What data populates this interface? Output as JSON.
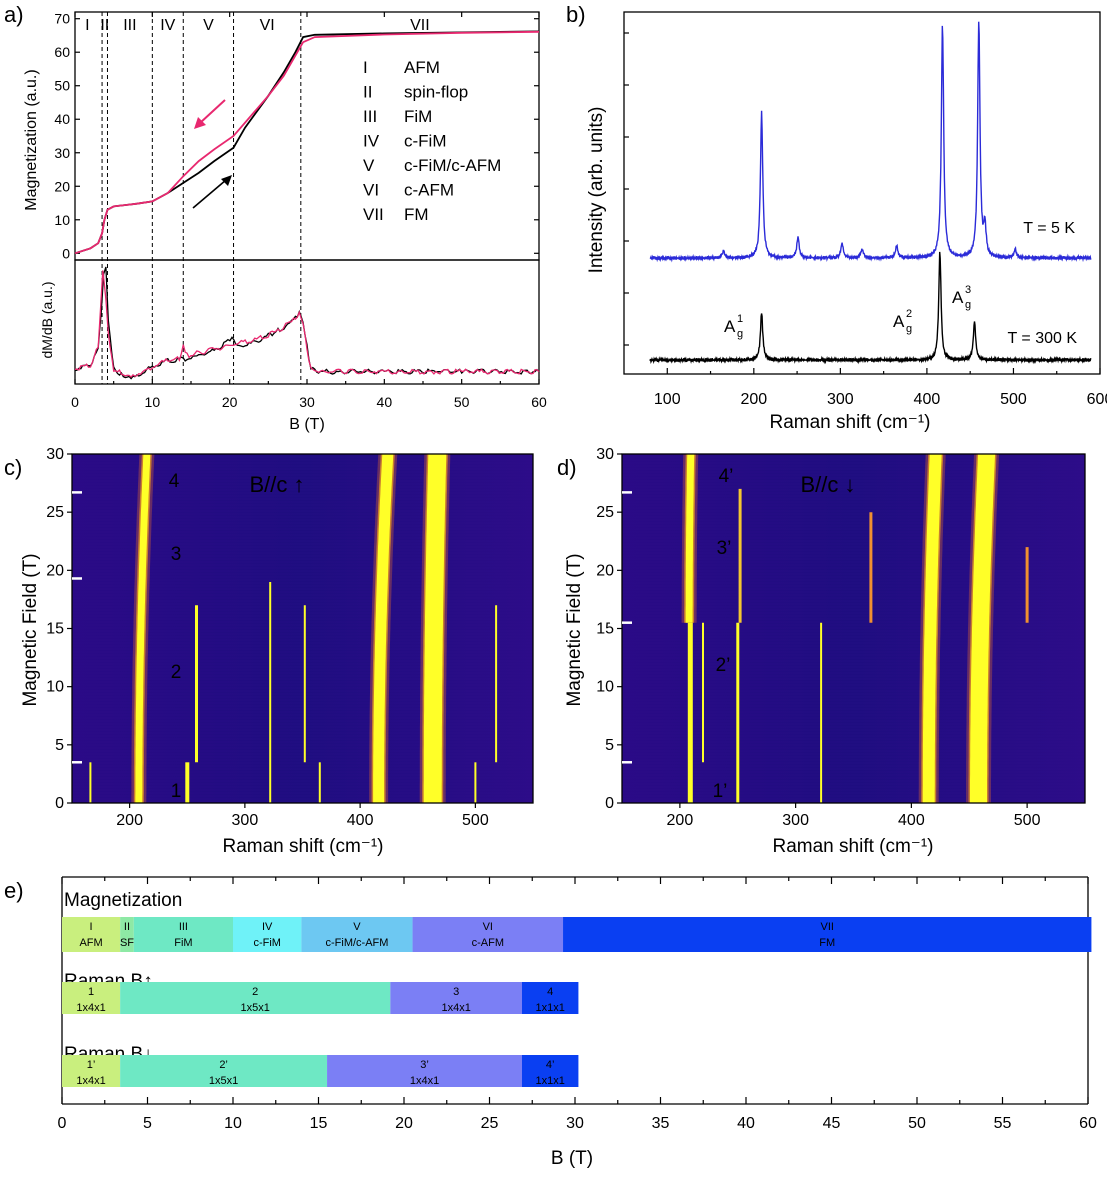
{
  "panel_labels": {
    "a": "a)",
    "b": "b)",
    "c": "c)",
    "d": "d)",
    "e": "e)"
  },
  "colors": {
    "black": "#000000",
    "pink": "#e8286f",
    "blue": "#2b2bd8",
    "heat_low": "#12066b",
    "heat_high": "#ffff00"
  },
  "chart_data": [
    {
      "id": "a_magnetization",
      "type": "line",
      "ylabel": "Magnetization (a.u.)",
      "xlim": [
        0,
        60
      ],
      "ylim": [
        -2,
        72
      ],
      "yticks": [
        "0",
        "10",
        "20",
        "30",
        "40",
        "50",
        "60",
        "70"
      ],
      "phase_labels": [
        "I",
        "II",
        "III",
        "IV",
        "V",
        "VI",
        "VII"
      ],
      "phase_boundaries": [
        3.5,
        4.2,
        10,
        14,
        20.5,
        29.2
      ],
      "legend": [
        {
          "num": "I",
          "name": "AFM"
        },
        {
          "num": "II",
          "name": "spin-flop"
        },
        {
          "num": "III",
          "name": "FiM"
        },
        {
          "num": "IV",
          "name": "c-FiM"
        },
        {
          "num": "V",
          "name": "c-FiM/c-AFM"
        },
        {
          "num": "VI",
          "name": "c-AFM"
        },
        {
          "num": "VII",
          "name": "FM"
        }
      ],
      "series": [
        {
          "color": "#000000",
          "x": [
            0,
            2,
            3,
            3.5,
            3.8,
            4.2,
            5,
            8,
            10,
            12,
            14,
            16,
            18,
            20.5,
            22,
            25,
            27,
            28.5,
            29.5,
            31,
            40,
            50,
            60
          ],
          "y": [
            0,
            1.5,
            3,
            6,
            10,
            13,
            14,
            14.8,
            15.5,
            18,
            21,
            24,
            27.5,
            31.5,
            37.5,
            47,
            54,
            60,
            64.5,
            65.2,
            65.6,
            65.9,
            66.2
          ]
        },
        {
          "color": "#e8286f",
          "x": [
            0,
            2,
            3,
            3.5,
            3.8,
            4.2,
            5,
            8,
            10,
            12,
            14,
            16,
            18,
            20.5,
            22,
            25,
            27,
            28.5,
            29.5,
            31,
            40,
            50,
            60
          ],
          "y": [
            0,
            1.5,
            3,
            6,
            10,
            13,
            14,
            14.8,
            15.5,
            18,
            23,
            27.5,
            31,
            35,
            39,
            47,
            53,
            59,
            63,
            64.5,
            65.3,
            65.8,
            66.1
          ]
        }
      ]
    },
    {
      "id": "a_derivative",
      "type": "line",
      "xlabel": "B (T)",
      "ylabel": "dM/dB (a.u.)",
      "xlim": [
        0,
        60
      ],
      "ylim": [
        0,
        10
      ],
      "xticks": [
        "0",
        "10",
        "20",
        "30",
        "40",
        "50",
        "60"
      ],
      "series": [
        {
          "color": "#000000",
          "x": [
            0,
            2,
            3,
            3.4,
            3.7,
            4,
            4.3,
            5,
            6,
            7,
            8,
            10,
            12,
            14,
            16,
            18,
            19.5,
            20.3,
            21,
            23,
            26,
            28,
            29,
            29.5,
            30.5,
            32,
            40,
            50,
            60
          ],
          "y": [
            1.2,
            1.5,
            3,
            6,
            9,
            9.5,
            5,
            1.2,
            0.8,
            0.6,
            0.7,
            1.4,
            1.9,
            2,
            2.3,
            2.7,
            3.3,
            3.6,
            3,
            3.3,
            4.2,
            5,
            5.7,
            4.8,
            1.2,
            1,
            1,
            1,
            1
          ]
        },
        {
          "color": "#e8286f",
          "x": [
            0,
            2,
            3,
            3.3,
            3.6,
            4,
            4.3,
            5,
            6,
            7,
            8,
            10,
            12,
            13.5,
            14,
            14.5,
            16,
            18,
            20,
            22,
            24,
            26,
            28,
            29,
            29.5,
            30.5,
            32,
            40,
            50,
            60
          ],
          "y": [
            1.2,
            1.5,
            3,
            6,
            9,
            7,
            4,
            1.2,
            0.9,
            0.7,
            0.8,
            1.4,
            1.9,
            2.1,
            3,
            2.3,
            2.5,
            2.8,
            3.1,
            3.4,
            3.7,
            4.2,
            5,
            5.6,
            4.7,
            1.2,
            1,
            1,
            1,
            1
          ]
        }
      ]
    },
    {
      "id": "b_raman",
      "type": "line",
      "xlabel": "Raman shift (cm⁻¹)",
      "ylabel": "Intensity (arb. units)",
      "xlim": [
        50,
        600
      ],
      "ylim": [
        0,
        10
      ],
      "xticks": [
        "100",
        "200",
        "300",
        "400",
        "500",
        "600"
      ],
      "series": [
        {
          "name": "T = 5 K",
          "color": "#2b2bd8",
          "peaks": [
            {
              "x": 165,
              "h": 0.25
            },
            {
              "x": 209,
              "h": 4.9
            },
            {
              "x": 251,
              "h": 0.7
            },
            {
              "x": 302,
              "h": 0.5
            },
            {
              "x": 325,
              "h": 0.3
            },
            {
              "x": 365,
              "h": 0.4
            },
            {
              "x": 418,
              "h": 7.8
            },
            {
              "x": 460,
              "h": 7.9
            },
            {
              "x": 467,
              "h": 1.0
            },
            {
              "x": 502,
              "h": 0.3
            }
          ]
        },
        {
          "name": "T = 300 K",
          "color": "#000000",
          "peaks": [
            {
              "x": 209,
              "h": 1.6
            },
            {
              "x": 415,
              "h": 3.6
            },
            {
              "x": 455,
              "h": 1.3
            }
          ]
        }
      ],
      "annotations": [
        {
          "base": "A",
          "sub": "g",
          "sup": "1"
        },
        {
          "base": "A",
          "sub": "g",
          "sup": "2"
        },
        {
          "base": "A",
          "sub": "g",
          "sup": "3"
        }
      ]
    },
    {
      "id": "c_heatmap_up",
      "type": "heatmap",
      "title": "B//c ↑",
      "xlabel": "Raman shift (cm⁻¹)",
      "ylabel": "Magnetic Field (T)",
      "xlim": [
        150,
        550
      ],
      "ylim": [
        0,
        30
      ],
      "xticks": [
        "200",
        "300",
        "400",
        "500"
      ],
      "yticks": [
        "0",
        "5",
        "10",
        "15",
        "20",
        "25",
        "30"
      ],
      "regions": [
        "1",
        "2",
        "3",
        "4"
      ],
      "boundaries": [
        3.5,
        19.3,
        26.7
      ]
    },
    {
      "id": "d_heatmap_down",
      "type": "heatmap",
      "title": "B//c ↓",
      "xlabel": "Raman shift (cm⁻¹)",
      "ylabel": "Magnetic Field (T)",
      "xlim": [
        150,
        550
      ],
      "ylim": [
        0,
        30
      ],
      "xticks": [
        "200",
        "300",
        "400",
        "500"
      ],
      "yticks": [
        "0",
        "5",
        "10",
        "15",
        "20",
        "25",
        "30"
      ],
      "regions": [
        "1’",
        "2’",
        "3’",
        "4’"
      ],
      "boundaries": [
        3.5,
        15.5,
        26.7
      ]
    },
    {
      "id": "e_phase_bars",
      "type": "bar",
      "xlabel": "B (T)",
      "xlim": [
        0,
        60
      ],
      "xticks": [
        "0",
        "5",
        "10",
        "15",
        "20",
        "25",
        "30",
        "35",
        "40",
        "45",
        "50",
        "55",
        "60"
      ],
      "rows": [
        {
          "label": "Magnetization",
          "segments": [
            {
              "num": "I",
              "name": "AFM",
              "from": 0,
              "to": 3.4,
              "color": "#c9ef7e"
            },
            {
              "num": "II",
              "name": "SF",
              "from": 3.4,
              "to": 4.2,
              "color": "#8ee9a5"
            },
            {
              "num": "III",
              "name": "FiM",
              "from": 4.2,
              "to": 10,
              "color": "#6ee8c4"
            },
            {
              "num": "IV",
              "name": "c-FiM",
              "from": 10,
              "to": 14,
              "color": "#6ff2f8"
            },
            {
              "num": "V",
              "name": "c-FiM/c-AFM",
              "from": 14,
              "to": 20.5,
              "color": "#6dc8f2"
            },
            {
              "num": "VI",
              "name": "c-AFM",
              "from": 20.5,
              "to": 29.3,
              "color": "#7b7ff5"
            },
            {
              "num": "VII",
              "name": "FM",
              "from": 29.3,
              "to": 60.2,
              "color": "#0a3ff2"
            }
          ]
        },
        {
          "label": "Raman B↑",
          "segments": [
            {
              "num": "1",
              "name": "1x4x1",
              "from": 0,
              "to": 3.4,
              "color": "#c9ef7e"
            },
            {
              "num": "2",
              "name": "1x5x1",
              "from": 3.4,
              "to": 19.2,
              "color": "#6ee8c4"
            },
            {
              "num": "3",
              "name": "1x4x1",
              "from": 19.2,
              "to": 26.9,
              "color": "#7b7ff5"
            },
            {
              "num": "4",
              "name": "1x1x1",
              "from": 26.9,
              "to": 30.2,
              "color": "#0a3ff2"
            }
          ]
        },
        {
          "label": "Raman B↓",
          "segments": [
            {
              "num": "1’",
              "name": "1x4x1",
              "from": 0,
              "to": 3.4,
              "color": "#c9ef7e"
            },
            {
              "num": "2’",
              "name": "1x5x1",
              "from": 3.4,
              "to": 15.5,
              "color": "#6ee8c4"
            },
            {
              "num": "3’",
              "name": "1x4x1",
              "from": 15.5,
              "to": 26.9,
              "color": "#7b7ff5"
            },
            {
              "num": "4’",
              "name": "1x1x1",
              "from": 26.9,
              "to": 30.2,
              "color": "#0a3ff2"
            }
          ]
        }
      ]
    }
  ]
}
